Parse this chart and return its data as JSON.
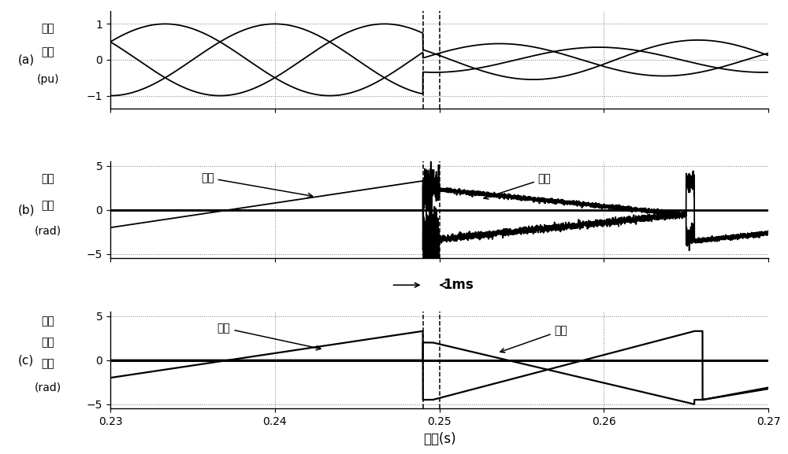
{
  "xlim": [
    0.23,
    0.27
  ],
  "dline1": 0.249,
  "dline2": 0.25,
  "panel_a_ylim": [
    -1.35,
    1.35
  ],
  "panel_a_yticks": [
    -1,
    0,
    1
  ],
  "panel_b_ylim": [
    -5.5,
    5.5
  ],
  "panel_b_yticks": [
    -5,
    0,
    5
  ],
  "panel_c_ylim": [
    -5.5,
    5.5
  ],
  "panel_c_yticks": [
    -5,
    0,
    5
  ],
  "xlabel": "时间(s)",
  "ylabel_a": [
    "三相",
    "电压",
    "(pu)"
  ],
  "ylabel_b": [
    "识别",
    "相位",
    "(rad)"
  ],
  "ylabel_c": [
    "动态",
    "锁相",
    "相位",
    "(rad)"
  ],
  "label_a": "(a)",
  "label_b": "(b)",
  "label_c": "(c)",
  "ann_zhengxu": "正序",
  "ann_fuxu": "负序",
  "ms_label": "1ms",
  "xticks": [
    0.23,
    0.24,
    0.25,
    0.26,
    0.27
  ],
  "freq": 50,
  "fault_time": 0.249
}
